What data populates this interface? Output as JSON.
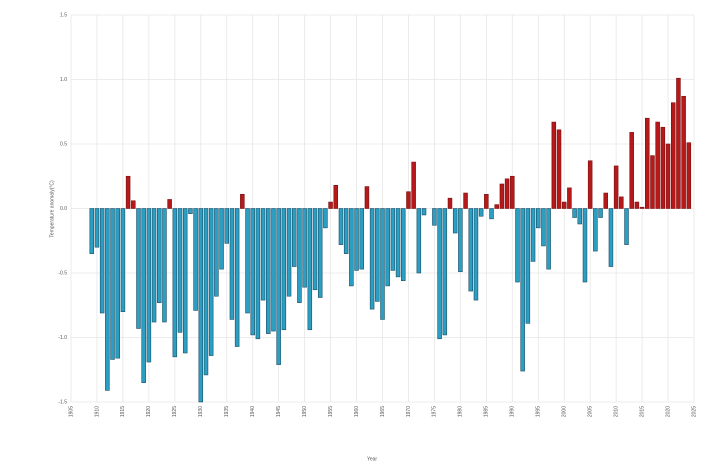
{
  "chart_data": {
    "type": "bar",
    "x_label": "Year",
    "y_label": "Temperature anomaly(°C)",
    "x": [
      1909,
      1910,
      1911,
      1912,
      1913,
      1914,
      1915,
      1916,
      1917,
      1918,
      1919,
      1920,
      1921,
      1922,
      1923,
      1924,
      1925,
      1926,
      1927,
      1928,
      1929,
      1930,
      1931,
      1932,
      1933,
      1934,
      1935,
      1936,
      1937,
      1938,
      1939,
      1940,
      1941,
      1942,
      1943,
      1944,
      1945,
      1946,
      1947,
      1948,
      1949,
      1950,
      1951,
      1952,
      1953,
      1954,
      1955,
      1956,
      1957,
      1958,
      1959,
      1960,
      1961,
      1962,
      1963,
      1964,
      1965,
      1966,
      1967,
      1968,
      1969,
      1970,
      1971,
      1972,
      1973,
      1974,
      1975,
      1976,
      1977,
      1978,
      1979,
      1980,
      1981,
      1982,
      1983,
      1984,
      1985,
      1986,
      1987,
      1988,
      1989,
      1990,
      1991,
      1992,
      1993,
      1994,
      1995,
      1996,
      1997,
      1998,
      1999,
      2000,
      2001,
      2002,
      2003,
      2004,
      2005,
      2006,
      2007,
      2008,
      2009,
      2010,
      2011,
      2012,
      2013,
      2014,
      2015,
      2016,
      2017,
      2018,
      2019,
      2020,
      2021,
      2022,
      2023,
      2024
    ],
    "values": [
      -0.35,
      -0.3,
      -0.81,
      -1.41,
      -1.17,
      -1.16,
      -0.8,
      0.25,
      0.06,
      -0.93,
      -1.35,
      -1.19,
      -0.88,
      -0.73,
      -0.88,
      0.07,
      -1.15,
      -0.96,
      -1.12,
      -0.04,
      -0.79,
      -1.5,
      -1.29,
      -1.14,
      -0.68,
      -0.47,
      -0.27,
      -0.86,
      -1.07,
      0.11,
      -0.81,
      -0.98,
      -1.01,
      -0.71,
      -0.97,
      -0.95,
      -1.21,
      -0.94,
      -0.68,
      -0.45,
      -0.73,
      -0.61,
      -0.94,
      -0.63,
      -0.69,
      -0.15,
      0.05,
      0.18,
      -0.28,
      -0.35,
      -0.6,
      -0.48,
      -0.47,
      0.17,
      -0.78,
      -0.72,
      -0.86,
      -0.6,
      -0.48,
      -0.53,
      -0.56,
      0.13,
      0.36,
      -0.5,
      -0.05,
      0,
      -0.13,
      -1.01,
      -0.98,
      0.08,
      -0.19,
      -0.49,
      0.12,
      -0.64,
      -0.71,
      -0.06,
      0.11,
      -0.08,
      0.03,
      0.19,
      0.23,
      0.25,
      -0.57,
      -1.26,
      -0.89,
      -0.41,
      -0.15,
      -0.29,
      -0.47,
      0.67,
      0.61,
      0.05,
      0.16,
      -0.07,
      -0.12,
      -0.57,
      0.37,
      -0.33,
      -0.07,
      0.12,
      -0.45,
      0.33,
      0.09,
      -0.28,
      0.59,
      0.05,
      0.01,
      0.7,
      0.41,
      0.67,
      0.63,
      0.5,
      0.82,
      1.01,
      0.87,
      0.51
    ],
    "positive_color": "#b5191a",
    "negative_color": "#2b9ec2",
    "xlim": [
      1905,
      2025
    ],
    "xticks": [
      1905,
      1910,
      1915,
      1920,
      1925,
      1930,
      1935,
      1940,
      1945,
      1950,
      1955,
      1960,
      1965,
      1970,
      1975,
      1980,
      1985,
      1990,
      1995,
      2000,
      2005,
      2010,
      2015,
      2020,
      2025
    ],
    "ylim": [
      -1.5,
      1.5
    ],
    "yticks": [
      -1.5,
      {
        "value": -1,
        "label": "-1.0"
      },
      -0.5,
      {
        "value": 0,
        "label": "0.0"
      },
      0.5,
      {
        "value": 1,
        "label": "1.0"
      },
      1.5
    ],
    "grid": true
  }
}
